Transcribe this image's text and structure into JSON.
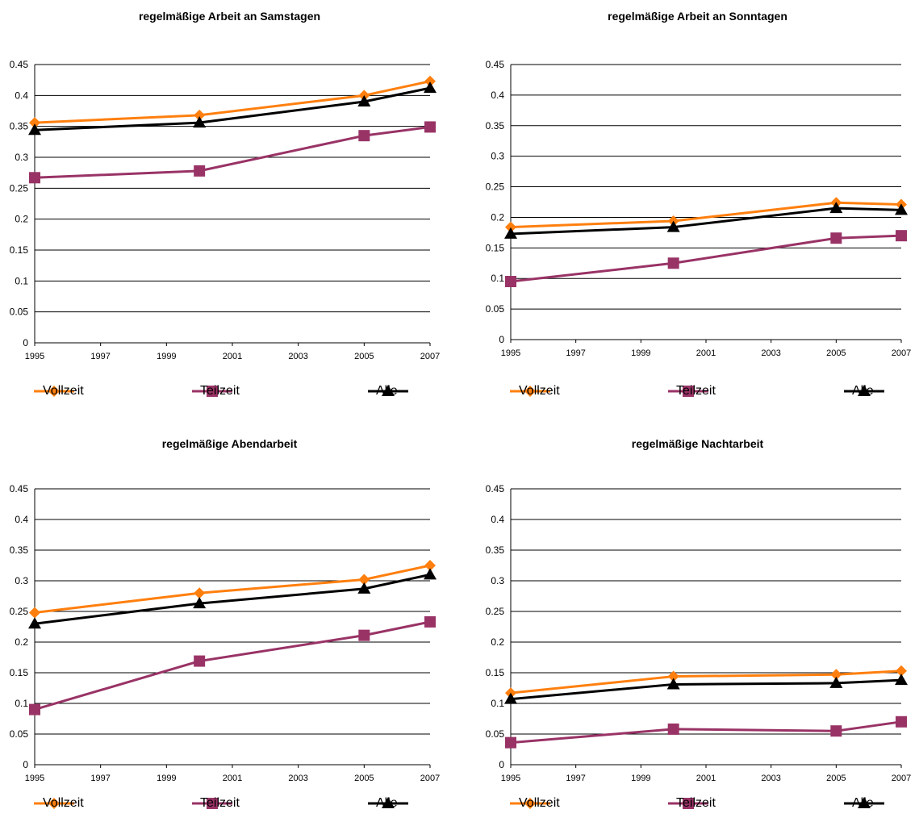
{
  "colors": {
    "Vollzeit": "#FF7F0E",
    "Teilzeit": "#993366",
    "Alle": "#000000",
    "grid": "#000000"
  },
  "chart_data": [
    {
      "type": "line",
      "title": "regelmäßige Arbeit an Samstagen",
      "x": [
        1995,
        2000,
        2005,
        2007
      ],
      "xticks": [
        "1995",
        "1997",
        "1999",
        "2001",
        "2003",
        "2005",
        "2007"
      ],
      "xlim": [
        1995,
        2007
      ],
      "ylim": [
        0,
        0.45
      ],
      "yticks": [
        "0",
        "0.05",
        "0.1",
        "0.15",
        "0.2",
        "0.25",
        "0.3",
        "0.35",
        "0.4",
        "0.45"
      ],
      "legend": "bottom",
      "series": [
        {
          "name": "Vollzeit",
          "marker": "diamond",
          "values": [
            0.356,
            0.368,
            0.4,
            0.423
          ]
        },
        {
          "name": "Teilzeit",
          "marker": "square",
          "values": [
            0.267,
            0.278,
            0.335,
            0.349
          ]
        },
        {
          "name": "Alle",
          "marker": "triangle",
          "values": [
            0.344,
            0.356,
            0.39,
            0.412
          ]
        }
      ]
    },
    {
      "type": "line",
      "title": "regelmäßige Arbeit an Sonntagen",
      "x": [
        1995,
        2000,
        2005,
        2007
      ],
      "xticks": [
        "1995",
        "1997",
        "1999",
        "2001",
        "2003",
        "2005",
        "2007"
      ],
      "xlim": [
        1995,
        2007
      ],
      "ylim": [
        0,
        0.45
      ],
      "yticks": [
        "0",
        "0.05",
        "0.1",
        "0.15",
        "0.2",
        "0.25",
        "0.3",
        "0.35",
        "0.4",
        "0.45"
      ],
      "legend": "bottom",
      "series": [
        {
          "name": "Vollzeit",
          "marker": "diamond",
          "values": [
            0.184,
            0.194,
            0.224,
            0.221
          ]
        },
        {
          "name": "Teilzeit",
          "marker": "square",
          "values": [
            0.095,
            0.125,
            0.166,
            0.17
          ]
        },
        {
          "name": "Alle",
          "marker": "triangle",
          "values": [
            0.173,
            0.184,
            0.215,
            0.212
          ]
        }
      ]
    },
    {
      "type": "line",
      "title": "regelmäßige Abendarbeit",
      "x": [
        1995,
        2000,
        2005,
        2007
      ],
      "xticks": [
        "1995",
        "1997",
        "1999",
        "2001",
        "2003",
        "2005",
        "2007"
      ],
      "xlim": [
        1995,
        2007
      ],
      "ylim": [
        0,
        0.45
      ],
      "yticks": [
        "0",
        "0.05",
        "0.1",
        "0.15",
        "0.2",
        "0.25",
        "0.3",
        "0.35",
        "0.4",
        "0.45"
      ],
      "legend": "bottom",
      "series": [
        {
          "name": "Vollzeit",
          "marker": "diamond",
          "values": [
            0.248,
            0.28,
            0.302,
            0.325
          ]
        },
        {
          "name": "Teilzeit",
          "marker": "square",
          "values": [
            0.09,
            0.169,
            0.211,
            0.233
          ]
        },
        {
          "name": "Alle",
          "marker": "triangle",
          "values": [
            0.23,
            0.263,
            0.287,
            0.31
          ]
        }
      ]
    },
    {
      "type": "line",
      "title": "regelmäßige Nachtarbeit",
      "x": [
        1995,
        2000,
        2005,
        2007
      ],
      "xticks": [
        "1995",
        "1997",
        "1999",
        "2001",
        "2003",
        "2005",
        "2007"
      ],
      "xlim": [
        1995,
        2007
      ],
      "ylim": [
        0,
        0.45
      ],
      "yticks": [
        "0",
        "0.05",
        "0.1",
        "0.15",
        "0.2",
        "0.25",
        "0.3",
        "0.35",
        "0.4",
        "0.45"
      ],
      "legend": "bottom",
      "series": [
        {
          "name": "Vollzeit",
          "marker": "diamond",
          "values": [
            0.117,
            0.144,
            0.147,
            0.153
          ]
        },
        {
          "name": "Teilzeit",
          "marker": "square",
          "values": [
            0.036,
            0.058,
            0.055,
            0.07
          ]
        },
        {
          "name": "Alle",
          "marker": "triangle",
          "values": [
            0.107,
            0.131,
            0.133,
            0.138
          ]
        }
      ]
    }
  ]
}
